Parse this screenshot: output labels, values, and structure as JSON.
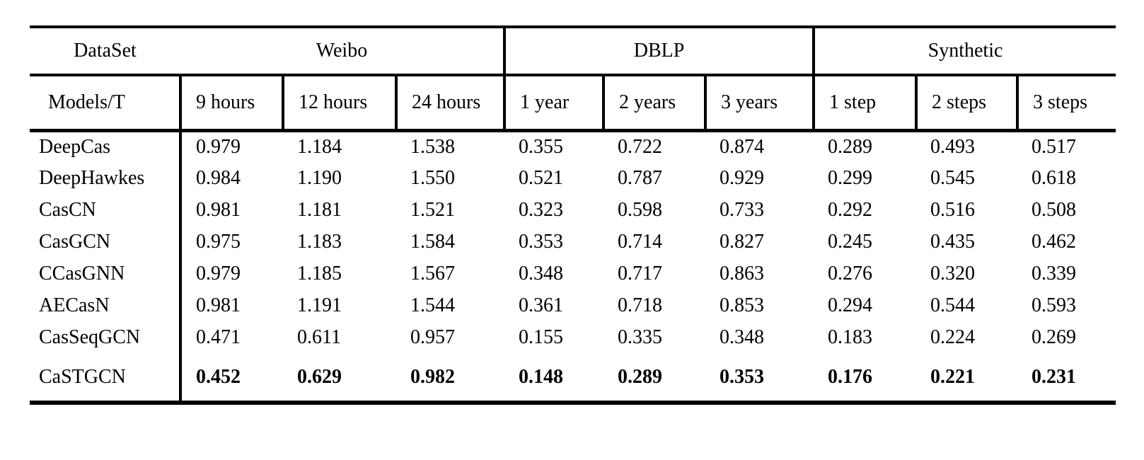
{
  "chart_data": {
    "type": "table",
    "col_groups": [
      {
        "label": "DataSet",
        "span": 1
      },
      {
        "label": "Weibo",
        "span": 3
      },
      {
        "label": "DBLP",
        "span": 3
      },
      {
        "label": "Synthetic",
        "span": 3
      }
    ],
    "sub_headers": [
      "Models/T",
      "9 hours",
      "12 hours",
      "24 hours",
      "1 year",
      "2 years",
      "3 years",
      "1 step",
      "2 steps",
      "3 steps"
    ],
    "rows": [
      {
        "model": "DeepCas",
        "bold": false,
        "values": [
          "0.979",
          "1.184",
          "1.538",
          "0.355",
          "0.722",
          "0.874",
          "0.289",
          "0.493",
          "0.517"
        ]
      },
      {
        "model": "DeepHawkes",
        "bold": false,
        "values": [
          "0.984",
          "1.190",
          "1.550",
          "0.521",
          "0.787",
          "0.929",
          "0.299",
          "0.545",
          "0.618"
        ]
      },
      {
        "model": "CasCN",
        "bold": false,
        "values": [
          "0.981",
          "1.181",
          "1.521",
          "0.323",
          "0.598",
          "0.733",
          "0.292",
          "0.516",
          "0.508"
        ]
      },
      {
        "model": "CasGCN",
        "bold": false,
        "values": [
          "0.975",
          "1.183",
          "1.584",
          "0.353",
          "0.714",
          "0.827",
          "0.245",
          "0.435",
          "0.462"
        ]
      },
      {
        "model": "CCasGNN",
        "bold": false,
        "values": [
          "0.979",
          "1.185",
          "1.567",
          "0.348",
          "0.717",
          "0.863",
          "0.276",
          "0.320",
          "0.339"
        ]
      },
      {
        "model": "AECasN",
        "bold": false,
        "values": [
          "0.981",
          "1.191",
          "1.544",
          "0.361",
          "0.718",
          "0.853",
          "0.294",
          "0.544",
          "0.593"
        ]
      },
      {
        "model": "CasSeqGCN",
        "bold": false,
        "values": [
          "0.471",
          "0.611",
          "0.957",
          "0.155",
          "0.335",
          "0.348",
          "0.183",
          "0.224",
          "0.269"
        ]
      },
      {
        "model": "CaSTGCN",
        "bold": true,
        "values": [
          "0.452",
          "0.629",
          "0.982",
          "0.148",
          "0.289",
          "0.353",
          "0.176",
          "0.221",
          "0.231"
        ]
      }
    ]
  },
  "colors": {
    "background": "#ffffff",
    "text": "#000000",
    "rule": "#000000"
  }
}
